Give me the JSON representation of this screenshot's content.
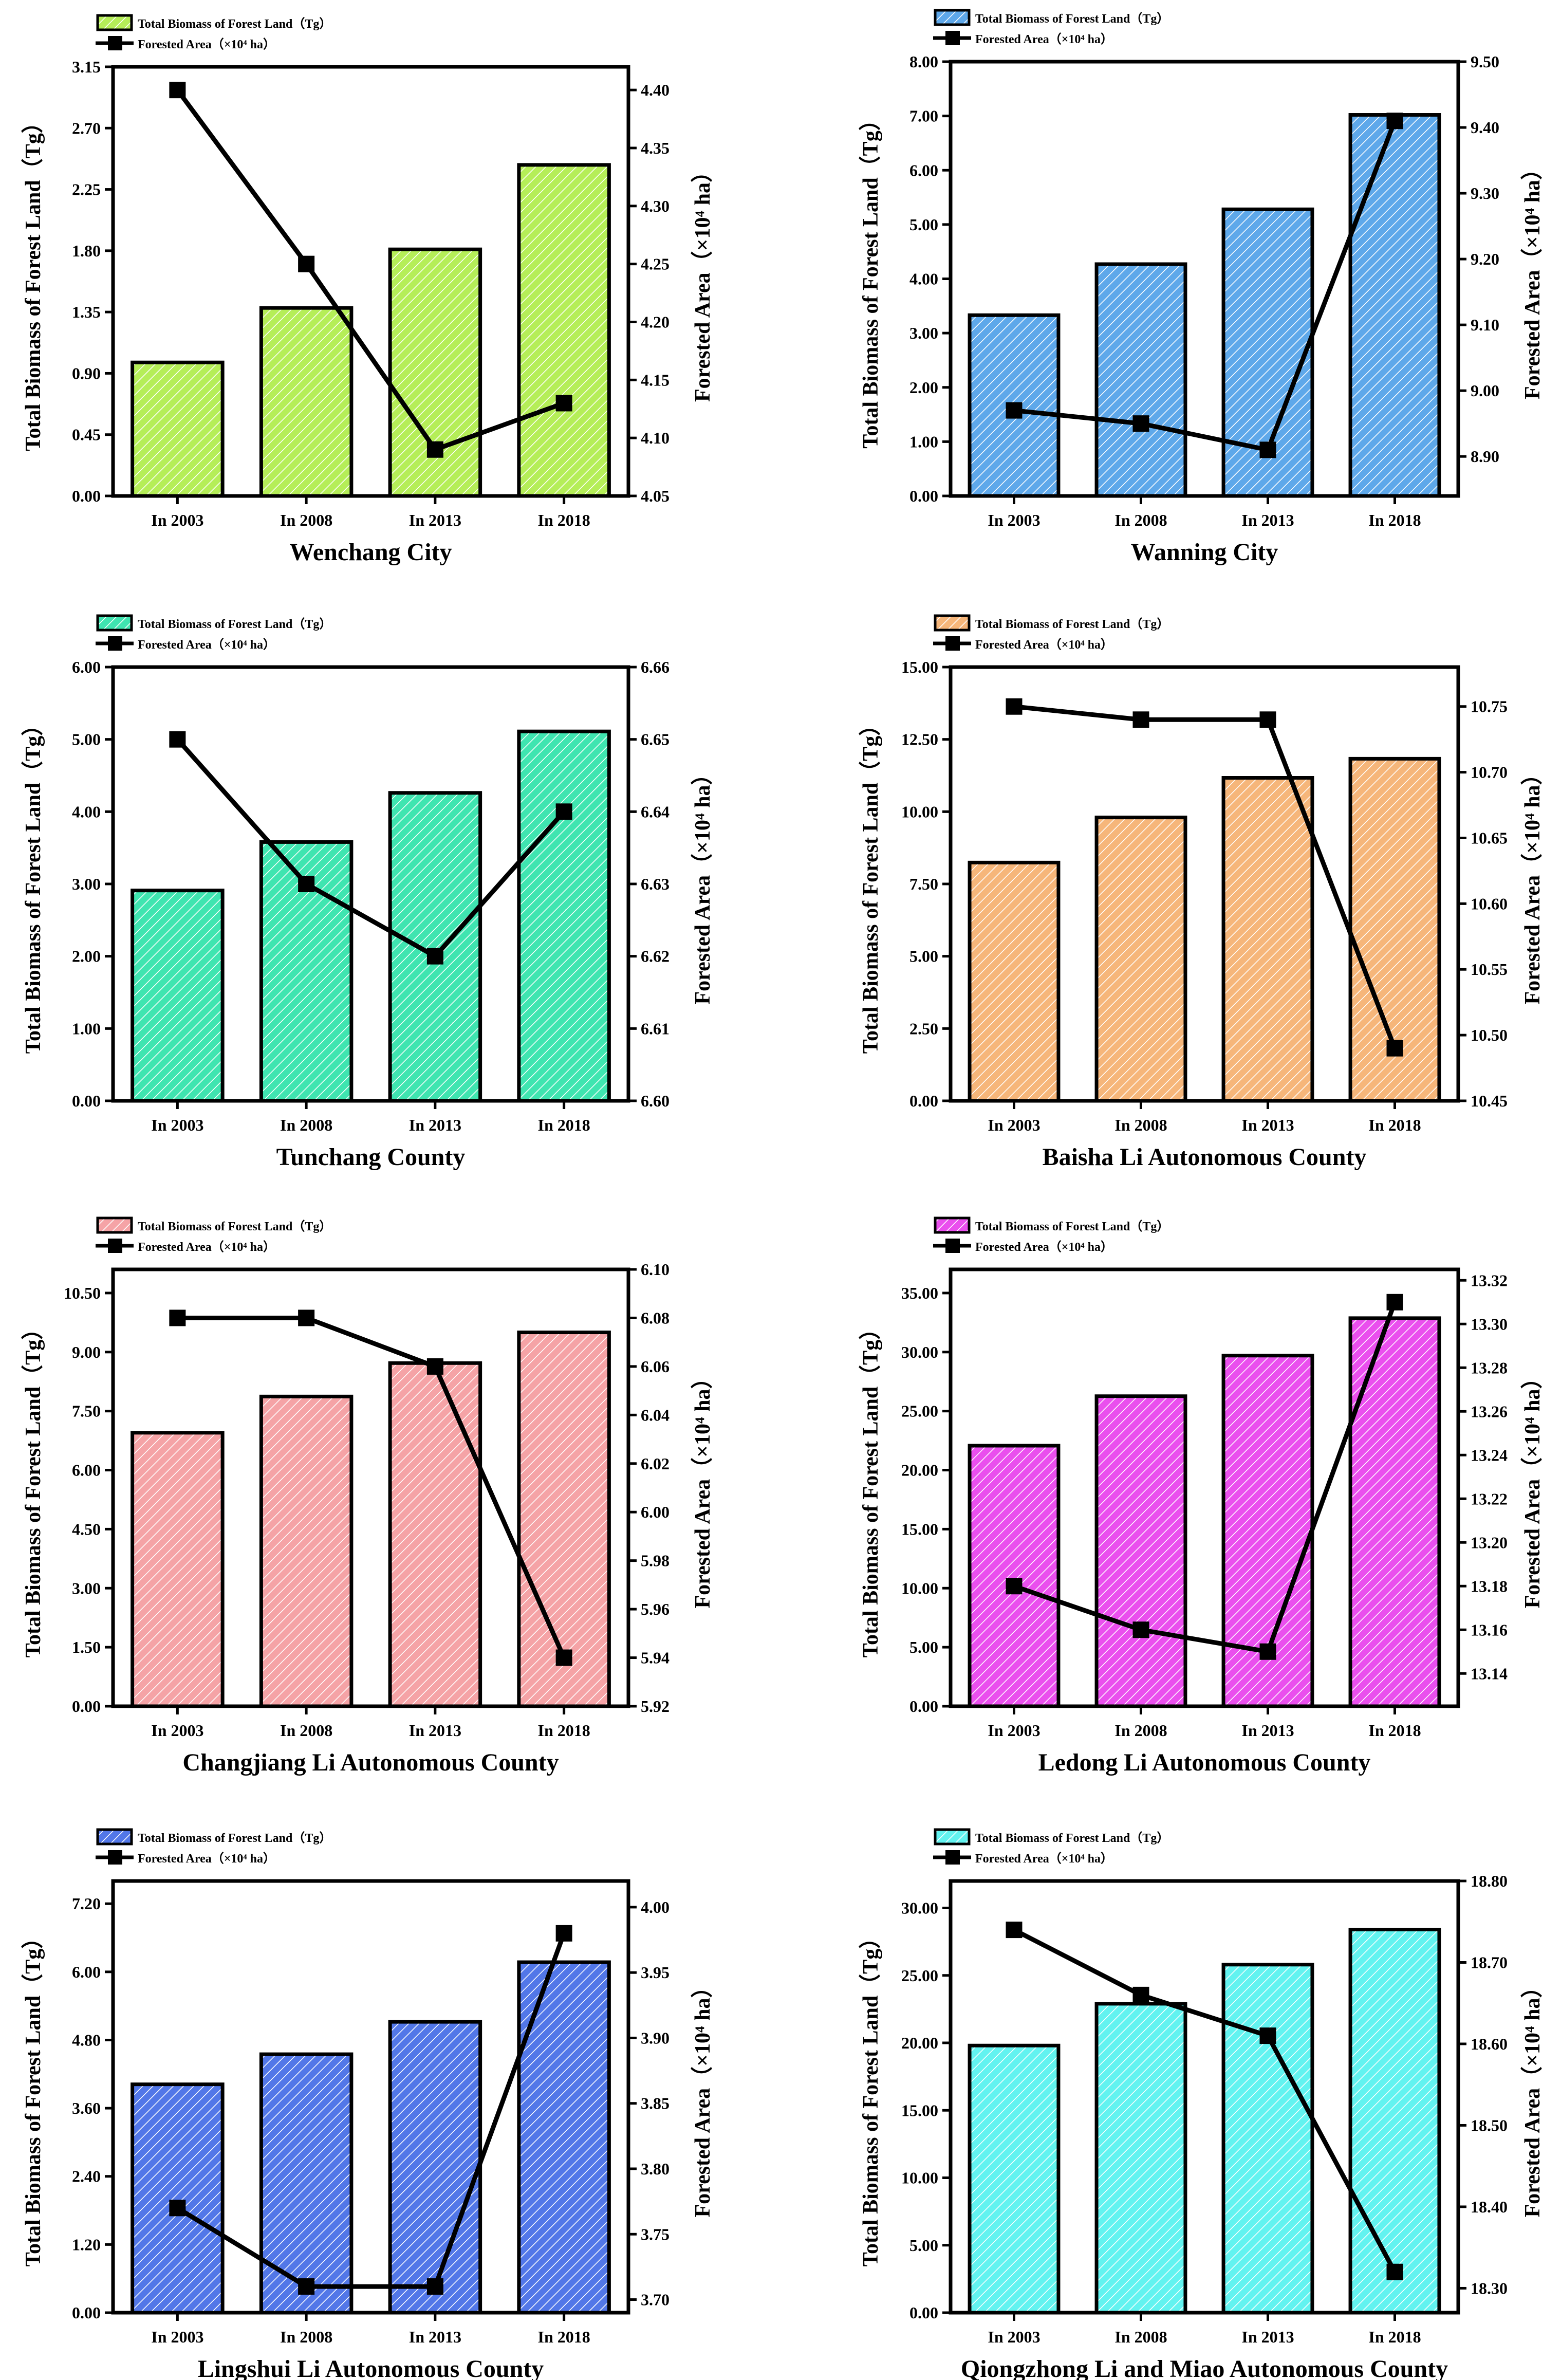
{
  "chart_data": [
    {
      "type": "bar",
      "title": "Wenchang City",
      "categories": [
        "In 2003",
        "In 2008",
        "In 2013",
        "In 2018"
      ],
      "series": [
        {
          "name": "Total Biomass of Forest Land（Tg）",
          "type": "bar",
          "axis": "left",
          "color": "#b5ee58",
          "values": [
            0.98,
            1.38,
            1.81,
            2.43
          ]
        },
        {
          "name": "Forested Area（×10⁴ ha）",
          "type": "line",
          "axis": "right",
          "color": "#000000",
          "values": [
            4.4,
            4.25,
            4.09,
            4.13
          ]
        }
      ],
      "ylabel": "Total Biomass of Forest Land（Tg）",
      "y2label": "Forested Area（×10⁴ ha）",
      "ylim": [
        0,
        3.15
      ],
      "yticks": [
        "0.00",
        "0.45",
        "0.90",
        "1.35",
        "1.80",
        "2.25",
        "2.70",
        "3.15"
      ],
      "y2lim": [
        4.05,
        4.42
      ],
      "y2ticks": [
        "4.05",
        "4.10",
        "4.15",
        "4.20",
        "4.25",
        "4.30",
        "4.35",
        "4.40"
      ],
      "legend_placement": "top-left"
    },
    {
      "type": "bar",
      "title": "Wanning City",
      "categories": [
        "In 2003",
        "In 2008",
        "In 2013",
        "In 2018"
      ],
      "series": [
        {
          "name": "Total Biomass of Forest Land（Tg）",
          "type": "bar",
          "axis": "left",
          "color": "#5ea8ea",
          "values": [
            3.33,
            4.27,
            5.28,
            7.02
          ]
        },
        {
          "name": "Forested Area（×10⁴ ha）",
          "type": "line",
          "axis": "right",
          "color": "#000000",
          "values": [
            8.97,
            8.95,
            8.91,
            9.41
          ]
        }
      ],
      "ylabel": "Total Biomass of Forest Land（Tg）",
      "y2label": "Forested Area（×10⁴ ha）",
      "ylim": [
        0,
        8.0
      ],
      "yticks": [
        "0.00",
        "1.00",
        "2.00",
        "3.00",
        "4.00",
        "5.00",
        "6.00",
        "7.00",
        "8.00"
      ],
      "y2lim": [
        8.84,
        9.5
      ],
      "y2ticks": [
        "8.90",
        "9.00",
        "9.10",
        "9.20",
        "9.30",
        "9.40",
        "9.50"
      ],
      "legend_placement": "top-left"
    },
    {
      "type": "bar",
      "title": "Tunchang County",
      "categories": [
        "In 2003",
        "In 2008",
        "In 2013",
        "In 2018"
      ],
      "series": [
        {
          "name": "Total Biomass of Forest Land（Tg）",
          "type": "bar",
          "axis": "left",
          "color": "#3fe5b0",
          "values": [
            2.91,
            3.58,
            4.26,
            5.11
          ]
        },
        {
          "name": "Forested Area（×10⁴ ha）",
          "type": "line",
          "axis": "right",
          "color": "#000000",
          "values": [
            6.65,
            6.63,
            6.62,
            6.64
          ]
        }
      ],
      "ylabel": "Total Biomass of Forest Land（Tg）",
      "y2label": "Forested Area（×10⁴ ha）",
      "ylim": [
        0,
        6.0
      ],
      "yticks": [
        "0.00",
        "1.00",
        "2.00",
        "3.00",
        "4.00",
        "5.00",
        "6.00"
      ],
      "y2lim": [
        6.6,
        6.66
      ],
      "y2ticks": [
        "6.60",
        "6.61",
        "6.62",
        "6.63",
        "6.64",
        "6.65",
        "6.66"
      ],
      "legend_placement": "top-left"
    },
    {
      "type": "bar",
      "title": "Baisha Li Autonomous County",
      "categories": [
        "In 2003",
        "In 2008",
        "In 2013",
        "In 2018"
      ],
      "series": [
        {
          "name": "Total Biomass of Forest Land（Tg）",
          "type": "bar",
          "axis": "left",
          "color": "#f6b67a",
          "values": [
            8.24,
            9.8,
            11.17,
            11.83
          ]
        },
        {
          "name": "Forested Area（×10⁴ ha）",
          "type": "line",
          "axis": "right",
          "color": "#000000",
          "values": [
            10.75,
            10.74,
            10.74,
            10.49
          ]
        }
      ],
      "ylabel": "Total Biomass of Forest Land（Tg）",
      "y2label": "Forested Area（×10⁴ ha）",
      "ylim": [
        0,
        15.0
      ],
      "yticks": [
        "0.00",
        "2.50",
        "5.00",
        "7.50",
        "10.00",
        "12.50",
        "15.00"
      ],
      "y2lim": [
        10.45,
        10.78
      ],
      "y2ticks": [
        "10.45",
        "10.50",
        "10.55",
        "10.60",
        "10.65",
        "10.70",
        "10.75"
      ],
      "legend_placement": "top-left"
    },
    {
      "type": "bar",
      "title": "Changjiang Li Autonomous County",
      "categories": [
        "In 2003",
        "In 2008",
        "In 2013",
        "In 2018"
      ],
      "series": [
        {
          "name": "Total Biomass of Forest Land（Tg）",
          "type": "bar",
          "axis": "left",
          "color": "#f5a3a6",
          "values": [
            6.95,
            7.87,
            8.72,
            9.5
          ]
        },
        {
          "name": "Forested Area（×10⁴ ha）",
          "type": "line",
          "axis": "right",
          "color": "#000000",
          "values": [
            6.08,
            6.08,
            6.06,
            5.94
          ]
        }
      ],
      "ylabel": "Total Biomass of Forest Land（Tg）",
      "y2label": "Forested Area（×10⁴ ha）",
      "ylim": [
        0,
        11.1
      ],
      "yticks": [
        "0.00",
        "1.50",
        "3.00",
        "4.50",
        "6.00",
        "7.50",
        "9.00",
        "10.50"
      ],
      "y2lim": [
        5.92,
        6.1
      ],
      "y2ticks": [
        "5.92",
        "5.94",
        "5.96",
        "5.98",
        "6.00",
        "6.02",
        "6.04",
        "6.06",
        "6.08",
        "6.10"
      ],
      "legend_placement": "top-left"
    },
    {
      "type": "bar",
      "title": "Ledong Li Autonomous County",
      "categories": [
        "In 2003",
        "In 2008",
        "In 2013",
        "In 2018"
      ],
      "series": [
        {
          "name": "Total Biomass of Forest Land（Tg）",
          "type": "bar",
          "axis": "left",
          "color": "#ea4fee",
          "values": [
            22.07,
            26.26,
            29.7,
            32.87
          ]
        },
        {
          "name": "Forested Area（×10⁴ ha）",
          "type": "line",
          "axis": "right",
          "color": "#000000",
          "values": [
            13.18,
            13.16,
            13.15,
            13.31
          ]
        }
      ],
      "ylabel": "Total Biomass of Forest Land（Tg）",
      "y2label": "Forested Area（×10⁴ ha）",
      "ylim": [
        0,
        37.0
      ],
      "yticks": [
        "0.00",
        "5.00",
        "10.00",
        "15.00",
        "20.00",
        "25.00",
        "30.00",
        "35.00"
      ],
      "y2lim": [
        13.125,
        13.325
      ],
      "y2ticks": [
        "13.14",
        "13.16",
        "13.18",
        "13.20",
        "13.22",
        "13.24",
        "13.26",
        "13.28",
        "13.30",
        "13.32"
      ],
      "legend_placement": "top-left"
    },
    {
      "type": "bar",
      "title": "Lingshui Li Autonomous County",
      "categories": [
        "In 2003",
        "In 2008",
        "In 2013",
        "In 2018"
      ],
      "series": [
        {
          "name": "Total Biomass of Forest Land（Tg）",
          "type": "bar",
          "axis": "left",
          "color": "#5277e8",
          "values": [
            4.02,
            4.55,
            5.12,
            6.17
          ]
        },
        {
          "name": "Forested Area（×10⁴ ha）",
          "type": "line",
          "axis": "right",
          "color": "#000000",
          "values": [
            3.77,
            3.71,
            3.71,
            3.98
          ]
        }
      ],
      "ylabel": "Total Biomass of Forest Land（Tg）",
      "y2label": "Forested Area（×10⁴ ha）",
      "ylim": [
        0,
        7.6
      ],
      "yticks": [
        "0.00",
        "1.20",
        "2.40",
        "3.60",
        "4.80",
        "6.00",
        "7.20"
      ],
      "y2lim": [
        3.69,
        4.02
      ],
      "y2ticks": [
        "3.70",
        "3.75",
        "3.80",
        "3.85",
        "3.90",
        "3.95",
        "4.00"
      ],
      "legend_placement": "top-left"
    },
    {
      "type": "bar",
      "title": "Qiongzhong Li and Miao Autonomous County",
      "categories": [
        "In 2003",
        "In 2008",
        "In 2013",
        "In 2018"
      ],
      "series": [
        {
          "name": "Total Biomass of Forest Land（Tg）",
          "type": "bar",
          "axis": "left",
          "color": "#62f3f0",
          "values": [
            19.8,
            22.9,
            25.8,
            28.4
          ]
        },
        {
          "name": "Forested Area（×10⁴ ha）",
          "type": "line",
          "axis": "right",
          "color": "#000000",
          "values": [
            18.74,
            18.66,
            18.61,
            18.32
          ]
        }
      ],
      "ylabel": "Total Biomass of Forest Land（Tg）",
      "y2label": "Forested Area（×10⁴ ha）",
      "ylim": [
        0,
        32.0
      ],
      "yticks": [
        "0.00",
        "5.00",
        "10.00",
        "15.00",
        "20.00",
        "25.00",
        "30.00"
      ],
      "y2lim": [
        18.27,
        18.8
      ],
      "y2ticks": [
        "18.30",
        "18.40",
        "18.50",
        "18.60",
        "18.70",
        "18.80"
      ],
      "legend_placement": "top-left"
    }
  ]
}
